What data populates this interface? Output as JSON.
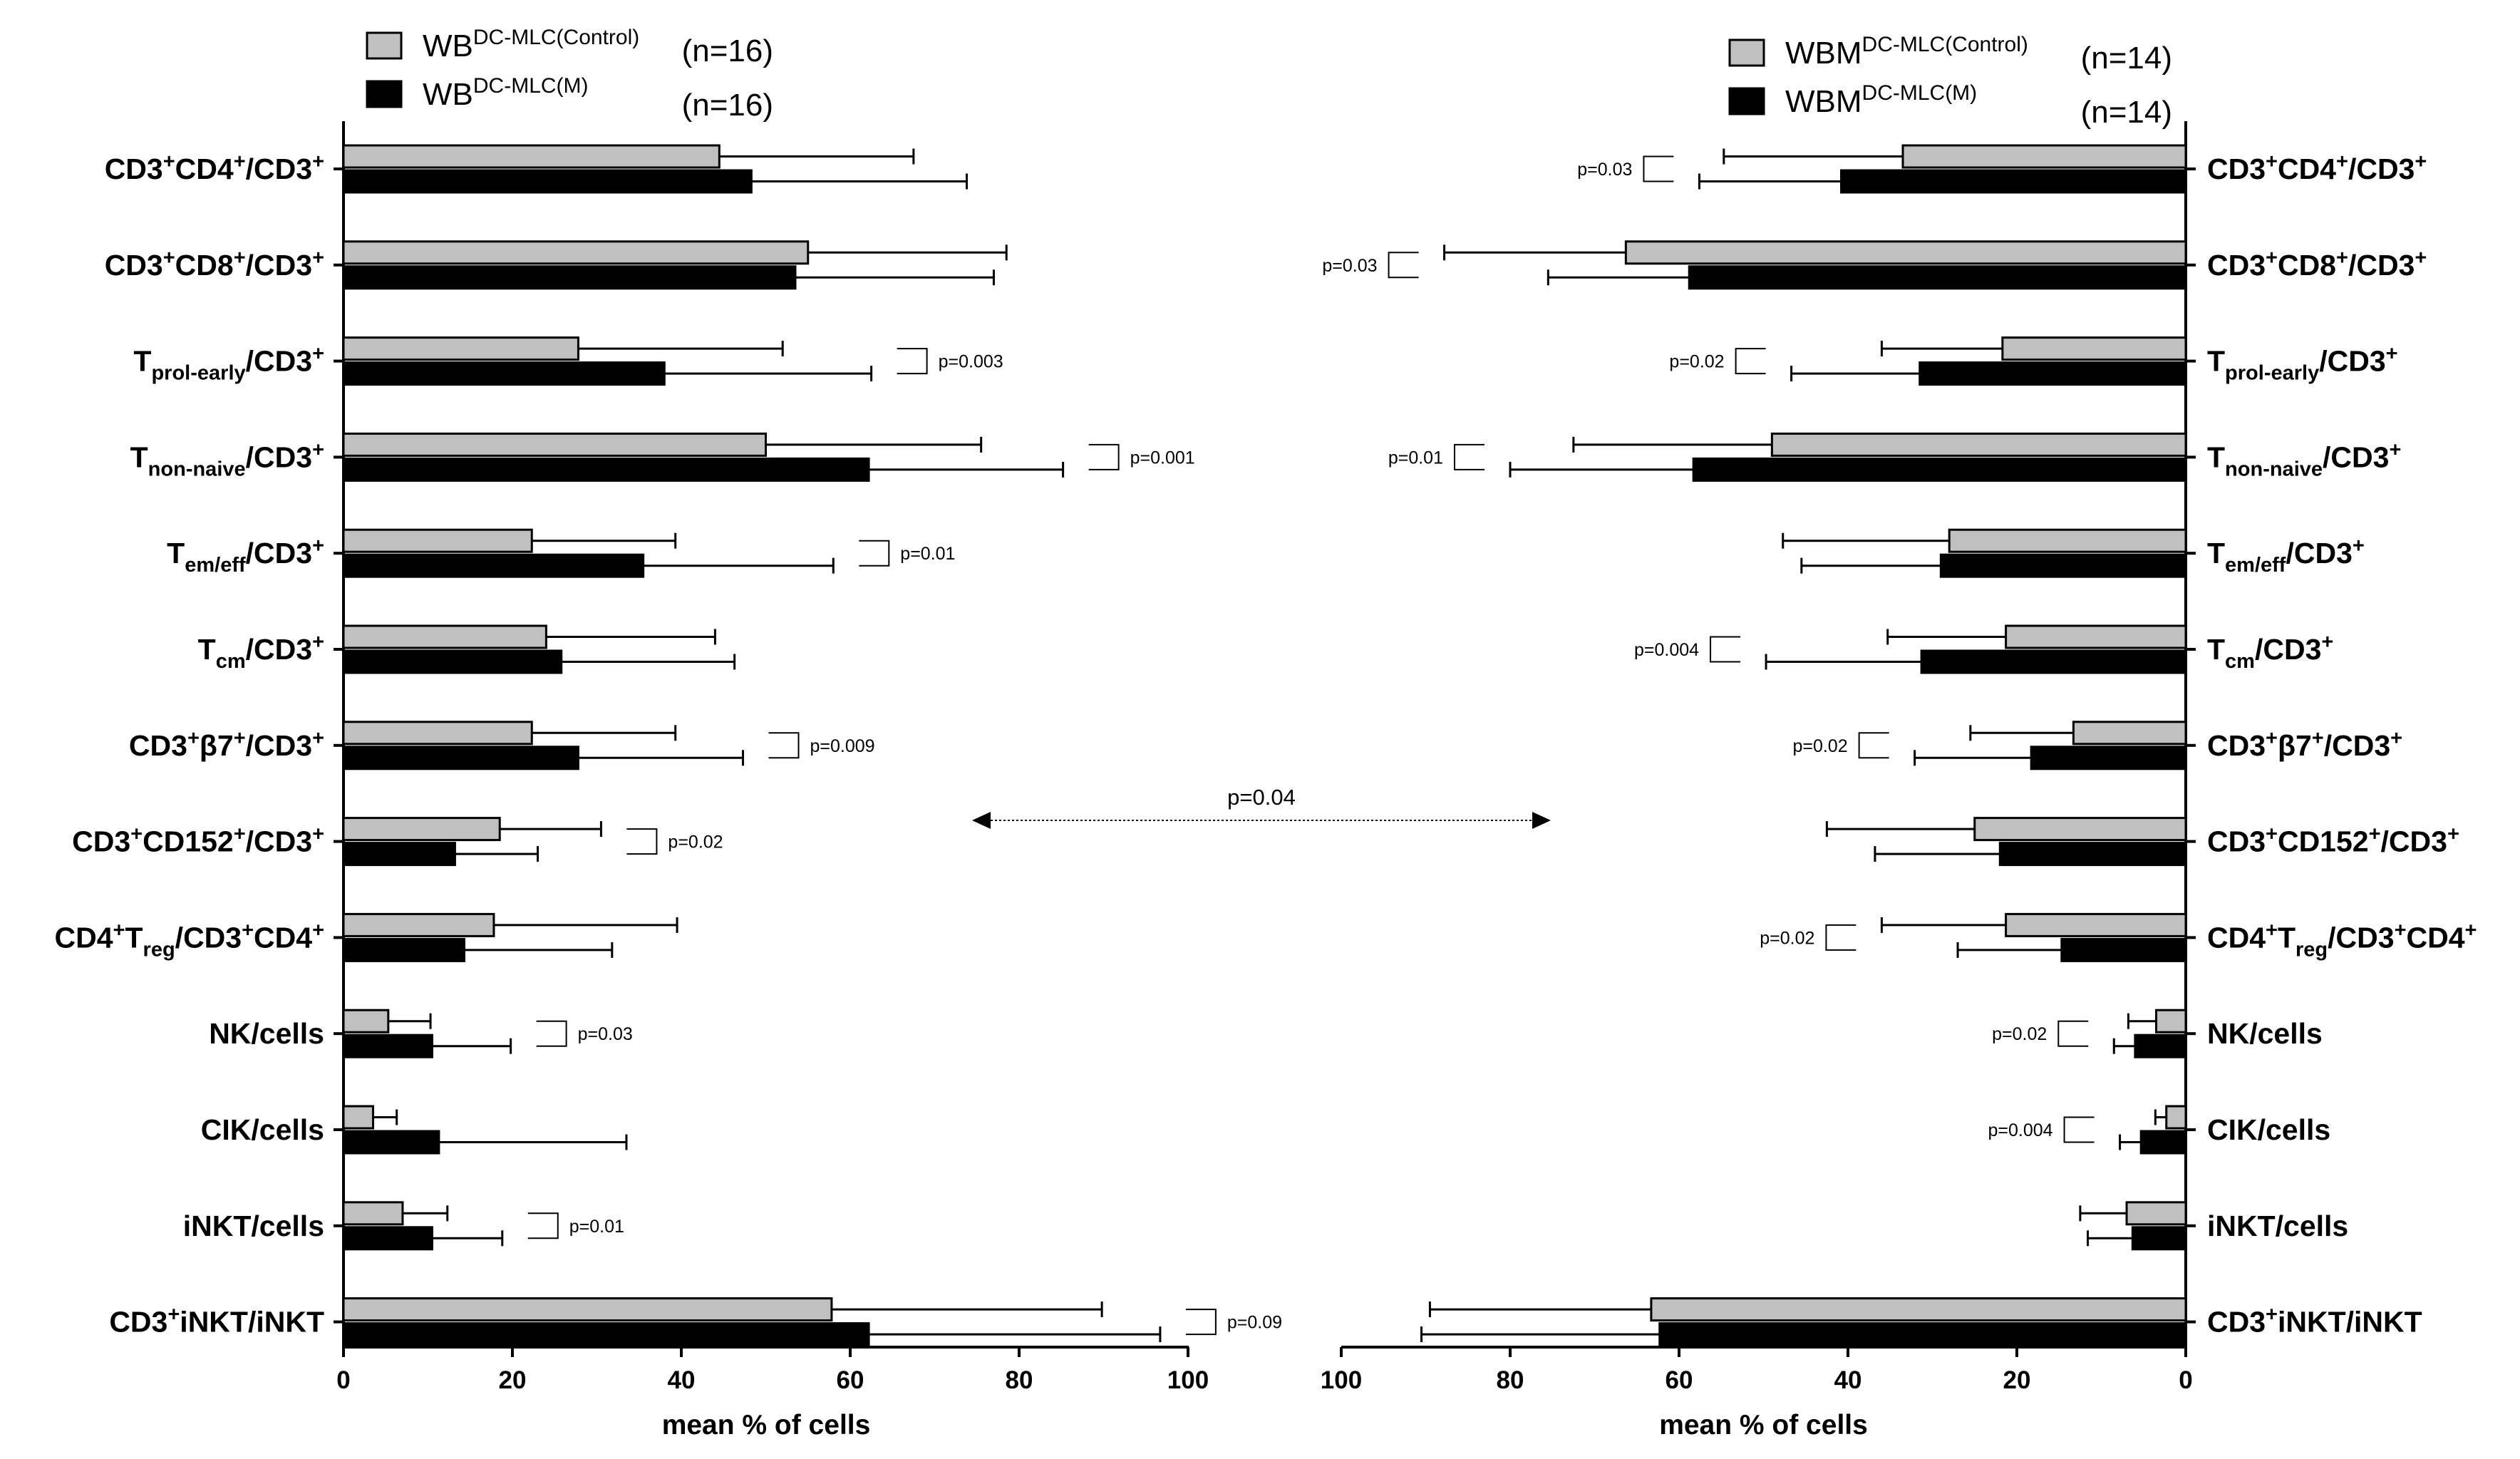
{
  "chart_data": [
    {
      "type": "bar",
      "orientation": "horizontal",
      "panel": "left",
      "xlabel": "mean % of cells",
      "xlim": [
        0,
        100
      ],
      "xticks": [
        "0",
        "20",
        "40",
        "60",
        "80",
        "100"
      ],
      "categories": [
        {
          "pre": "CD3",
          "sup": "+",
          "base": "CD4",
          "sup2": "+",
          "post": "/CD3",
          "sup3": "+"
        },
        {
          "pre": "CD3",
          "sup": "+",
          "base": "CD8",
          "sup2": "+",
          "post": "/CD3",
          "sup3": "+"
        },
        {
          "pre": "T",
          "sub": "prol-early",
          "post": "/CD3",
          "sup3": "+"
        },
        {
          "pre": "T",
          "sub": "non-naive",
          "post": "/CD3",
          "sup3": "+"
        },
        {
          "pre": "T",
          "sub": "em/eff",
          "post": "/CD3",
          "sup3": "+"
        },
        {
          "pre": "T",
          "sub": "cm",
          "post": "/CD3",
          "sup3": "+"
        },
        {
          "pre": "CD3",
          "sup": "+",
          "base": "β7",
          "sup2": "+",
          "post": "/CD3",
          "sup3": "+"
        },
        {
          "pre": "CD3",
          "sup": "+",
          "base": "CD152",
          "sup2": "+",
          "post": "/CD3",
          "sup3": "+"
        },
        {
          "pre": "CD4",
          "sup": "+",
          "base": "T",
          "sub": "reg",
          "post": "/CD3",
          "sup3": "+",
          "tail": "CD4",
          "sup4": "+"
        },
        {
          "pre": "NK/cells"
        },
        {
          "pre": "CIK/cells"
        },
        {
          "pre": "iNKT/cells"
        },
        {
          "pre": "CD3",
          "sup": "+",
          "base": "iNKT/iNKT"
        }
      ],
      "series": [
        {
          "name": "WB",
          "sup": "DC-MLC(Control)",
          "n": "(n=16)",
          "color": "#c0c0c0",
          "values": [
            44.5,
            55,
            27.8,
            50,
            22.3,
            24,
            22.3,
            18.5,
            17.8,
            5.3,
            3.5,
            7,
            57.8
          ],
          "errors": [
            23,
            23.5,
            24.2,
            25.5,
            17,
            20,
            17,
            12,
            21.7,
            5,
            2.8,
            5.3,
            32
          ]
        },
        {
          "name": "WB",
          "sup": "DC-MLC(M)",
          "n": "(n=16)",
          "color": "#000000",
          "values": [
            48.3,
            53.5,
            38,
            62.2,
            35.5,
            25.8,
            27.8,
            13.2,
            14.3,
            10.5,
            11.3,
            10.5,
            62.2
          ],
          "errors": [
            25.5,
            23.5,
            24.5,
            23,
            22.5,
            20.5,
            19.5,
            9.8,
            17.5,
            9.3,
            22.2,
            8.3,
            34.5
          ]
        }
      ],
      "annotations": [
        {
          "row": 2,
          "label": "p=0.003"
        },
        {
          "row": 3,
          "label": "p=0.001"
        },
        {
          "row": 4,
          "label": "p=0.01"
        },
        {
          "row": 6,
          "label": "p=0.009"
        },
        {
          "row": 7,
          "label": "p=0.02"
        },
        {
          "row": 9,
          "label": "p=0.03"
        },
        {
          "row": 11,
          "label": "p=0.01"
        },
        {
          "row": 12,
          "label": "p=0.09"
        }
      ]
    },
    {
      "type": "bar",
      "orientation": "horizontal",
      "panel": "right",
      "reversed": true,
      "xlabel": "mean % of cells",
      "xlim": [
        0,
        100
      ],
      "xticks": [
        "100",
        "80",
        "60",
        "40",
        "20",
        "0"
      ],
      "categories": [
        {
          "pre": "CD3",
          "sup": "+",
          "base": "CD4",
          "sup2": "+",
          "post": "/CD3",
          "sup3": "+"
        },
        {
          "pre": "CD3",
          "sup": "+",
          "base": "CD8",
          "sup2": "+",
          "post": "/CD3",
          "sup3": "+"
        },
        {
          "pre": "T",
          "sub": "prol-early",
          "post": "/CD3",
          "sup3": "+"
        },
        {
          "pre": "T",
          "sub": "non-naive",
          "post": "/CD3",
          "sup3": "+"
        },
        {
          "pre": "T",
          "sub": "em/eff",
          "post": "/CD3",
          "sup3": "+"
        },
        {
          "pre": "T",
          "sub": "cm",
          "post": "/CD3",
          "sup3": "+"
        },
        {
          "pre": "CD3",
          "sup": "+",
          "base": "β7",
          "sup2": "+",
          "post": "/CD3",
          "sup3": "+"
        },
        {
          "pre": "CD3",
          "sup": "+",
          "base": "CD152",
          "sup2": "+",
          "post": "/CD3",
          "sup3": "+"
        },
        {
          "pre": "CD4",
          "sup": "+",
          "base": "T",
          "sub": "reg",
          "post": "/CD3",
          "sup3": "+",
          "tail": "CD4",
          "sup4": "+"
        },
        {
          "pre": "NK/cells"
        },
        {
          "pre": "CIK/cells"
        },
        {
          "pre": "iNKT/cells"
        },
        {
          "pre": "CD3",
          "sup": "+",
          "base": "iNKT/iNKT"
        }
      ],
      "series": [
        {
          "name": "WBM",
          "sup": "DC-MLC(Control)",
          "n": "(n=14)",
          "color": "#c0c0c0",
          "values": [
            33.5,
            66.3,
            21.7,
            49,
            28,
            21.3,
            13.3,
            25,
            21.3,
            3.5,
            2.3,
            7,
            63.3
          ],
          "errors": [
            21.2,
            21.5,
            14.3,
            23.5,
            19.7,
            14,
            12.2,
            17.5,
            14.7,
            3.3,
            1.3,
            5.5,
            26.2
          ]
        },
        {
          "name": "WBM",
          "sup": "DC-MLC(M)",
          "n": "(n=14)",
          "color": "#000000",
          "values": [
            40.8,
            58.8,
            31.5,
            58.3,
            29,
            31.3,
            18.3,
            22,
            14.7,
            6,
            5.3,
            6.3,
            62.3
          ],
          "errors": [
            16.8,
            16.7,
            15.2,
            21.7,
            16.5,
            18.4,
            13.8,
            14.8,
            12.3,
            2.5,
            2.5,
            5.3,
            28.2
          ]
        }
      ],
      "annotations": [
        {
          "row": 0,
          "label": "p=0.03"
        },
        {
          "row": 1,
          "label": "p=0.03"
        },
        {
          "row": 2,
          "label": "p=0.02"
        },
        {
          "row": 3,
          "label": "p=0.01"
        },
        {
          "row": 5,
          "label": "p=0.004"
        },
        {
          "row": 6,
          "label": "p=0.02"
        },
        {
          "row": 8,
          "label": "p=0.02"
        },
        {
          "row": 9,
          "label": "p=0.02"
        },
        {
          "row": 10,
          "label": "p=0.004"
        }
      ]
    }
  ],
  "comparison": {
    "label": "p=0.04"
  }
}
